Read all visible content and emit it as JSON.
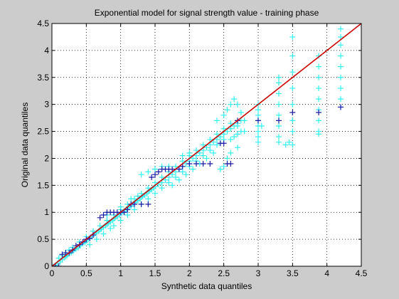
{
  "chart_data": {
    "type": "scatter",
    "title": "Exponential model for signal strength value - training phase",
    "xlabel": "Synthetic data quantiles",
    "ylabel": "Original data quantiles",
    "xlim": [
      0,
      4.5
    ],
    "ylim": [
      0,
      4.5
    ],
    "xticks": [
      0,
      0.5,
      1,
      1.5,
      2,
      2.5,
      3,
      3.5,
      4,
      4.5
    ],
    "yticks": [
      0,
      0.5,
      1,
      1.5,
      2,
      2.5,
      3,
      3.5,
      4,
      4.5
    ],
    "xtick_labels": [
      "0",
      "0.5",
      "1",
      "1.5",
      "2",
      "2.5",
      "3",
      "3.5",
      "4",
      "4.5"
    ],
    "ytick_labels": [
      "0",
      "0.5",
      "1",
      "1.5",
      "2",
      "2.5",
      "3",
      "3.5",
      "4",
      "4.5"
    ],
    "grid": true,
    "marker": "+",
    "colors": {
      "figure_bg": "#cccccc",
      "axes_bg": "#ffffff",
      "cyan": "#33f0f0",
      "blue": "#1a1aa8",
      "line": "#cc0000"
    },
    "series": [
      {
        "color": "cyan",
        "points": [
          [
            0.02,
            0.0
          ],
          [
            0.05,
            0.02
          ],
          [
            0.08,
            0.05
          ],
          [
            0.12,
            0.08
          ],
          [
            0.15,
            0.12
          ],
          [
            0.18,
            0.16
          ],
          [
            0.2,
            0.18
          ],
          [
            0.22,
            0.2
          ],
          [
            0.25,
            0.23
          ],
          [
            0.28,
            0.25
          ],
          [
            0.3,
            0.28
          ],
          [
            0.32,
            0.3
          ],
          [
            0.35,
            0.32
          ],
          [
            0.38,
            0.34
          ],
          [
            0.4,
            0.38
          ],
          [
            0.42,
            0.4
          ],
          [
            0.45,
            0.42
          ],
          [
            0.48,
            0.44
          ],
          [
            0.5,
            0.47
          ],
          [
            0.52,
            0.5
          ],
          [
            0.55,
            0.52
          ],
          [
            0.58,
            0.55
          ],
          [
            0.6,
            0.58
          ],
          [
            0.62,
            0.6
          ],
          [
            0.65,
            0.62
          ],
          [
            0.68,
            0.65
          ],
          [
            0.7,
            0.68
          ],
          [
            0.72,
            0.7
          ],
          [
            0.75,
            0.72
          ],
          [
            0.78,
            0.75
          ],
          [
            0.8,
            0.78
          ],
          [
            0.82,
            0.8
          ],
          [
            0.85,
            0.82
          ],
          [
            0.88,
            0.85
          ],
          [
            0.9,
            0.88
          ],
          [
            0.92,
            0.9
          ],
          [
            0.95,
            0.92
          ],
          [
            0.98,
            0.95
          ],
          [
            1.0,
            0.98
          ],
          [
            1.02,
            1.0
          ],
          [
            1.05,
            1.02
          ],
          [
            1.08,
            1.05
          ],
          [
            1.1,
            1.08
          ],
          [
            1.12,
            1.1
          ],
          [
            1.15,
            1.12
          ],
          [
            1.18,
            1.15
          ],
          [
            1.2,
            1.18
          ],
          [
            1.22,
            1.2
          ],
          [
            1.25,
            1.22
          ],
          [
            1.28,
            1.25
          ],
          [
            1.3,
            1.28
          ],
          [
            1.32,
            1.3
          ],
          [
            1.35,
            1.32
          ],
          [
            1.38,
            1.35
          ],
          [
            1.4,
            1.38
          ],
          [
            1.42,
            1.4
          ],
          [
            1.45,
            1.42
          ],
          [
            1.48,
            1.45
          ],
          [
            1.5,
            1.48
          ],
          [
            1.55,
            1.52
          ],
          [
            1.6,
            1.55
          ],
          [
            1.65,
            1.6
          ],
          [
            1.7,
            1.65
          ],
          [
            1.75,
            1.7
          ],
          [
            1.8,
            1.75
          ],
          [
            1.85,
            1.8
          ],
          [
            1.9,
            1.85
          ],
          [
            1.95,
            1.9
          ],
          [
            2.0,
            1.95
          ],
          [
            2.05,
            2.0
          ],
          [
            2.1,
            2.05
          ],
          [
            2.15,
            2.1
          ],
          [
            2.2,
            2.15
          ],
          [
            2.25,
            2.2
          ],
          [
            2.3,
            2.25
          ],
          [
            2.35,
            2.3
          ],
          [
            2.4,
            2.35
          ],
          [
            2.45,
            2.4
          ],
          [
            2.5,
            2.45
          ],
          [
            2.55,
            2.5
          ],
          [
            2.6,
            2.55
          ],
          [
            2.65,
            2.6
          ],
          [
            2.7,
            2.65
          ],
          [
            0.1,
            0.15
          ],
          [
            0.15,
            0.2
          ],
          [
            0.2,
            0.25
          ],
          [
            0.25,
            0.3
          ],
          [
            0.3,
            0.35
          ],
          [
            0.4,
            0.45
          ],
          [
            0.5,
            0.55
          ],
          [
            0.6,
            0.65
          ],
          [
            0.7,
            0.75
          ],
          [
            0.8,
            0.85
          ],
          [
            0.9,
            0.95
          ],
          [
            1.0,
            1.05
          ],
          [
            1.1,
            1.15
          ],
          [
            1.2,
            1.25
          ],
          [
            1.3,
            1.35
          ],
          [
            1.4,
            1.45
          ],
          [
            1.5,
            1.55
          ],
          [
            1.6,
            1.65
          ],
          [
            1.7,
            1.75
          ],
          [
            1.8,
            1.85
          ],
          [
            1.9,
            1.95
          ],
          [
            2.0,
            2.05
          ],
          [
            2.1,
            2.15
          ],
          [
            2.2,
            2.25
          ],
          [
            2.3,
            2.35
          ],
          [
            2.4,
            2.45
          ],
          [
            2.5,
            2.55
          ],
          [
            2.6,
            2.65
          ],
          [
            0.9,
            0.75
          ],
          [
            1.0,
            0.85
          ],
          [
            1.1,
            0.95
          ],
          [
            1.2,
            1.05
          ],
          [
            1.3,
            1.15
          ],
          [
            1.4,
            1.25
          ],
          [
            1.5,
            1.35
          ],
          [
            1.6,
            1.45
          ],
          [
            1.7,
            1.55
          ],
          [
            1.8,
            1.65
          ],
          [
            1.9,
            1.75
          ],
          [
            2.0,
            1.85
          ],
          [
            2.1,
            1.95
          ],
          [
            2.2,
            2.05
          ],
          [
            2.3,
            2.15
          ],
          [
            2.4,
            2.25
          ],
          [
            2.5,
            2.35
          ],
          [
            1.3,
            1.7
          ],
          [
            1.4,
            1.75
          ],
          [
            1.5,
            1.8
          ],
          [
            1.6,
            1.85
          ],
          [
            1.7,
            1.85
          ],
          [
            1.9,
            2.05
          ],
          [
            2.0,
            2.1
          ],
          [
            2.4,
            2.7
          ],
          [
            2.5,
            2.8
          ],
          [
            2.55,
            2.9
          ],
          [
            2.6,
            3.0
          ],
          [
            2.65,
            3.1
          ],
          [
            2.7,
            3.0
          ],
          [
            2.75,
            2.85
          ],
          [
            2.6,
            2.35
          ],
          [
            2.65,
            2.4
          ],
          [
            2.7,
            2.45
          ],
          [
            2.75,
            2.5
          ],
          [
            2.6,
            2.1
          ],
          [
            2.55,
            2.0
          ],
          [
            2.5,
            1.85
          ],
          [
            2.45,
            1.8
          ],
          [
            2.7,
            2.2
          ],
          [
            3.0,
            2.6
          ],
          [
            3.0,
            2.7
          ],
          [
            3.0,
            2.8
          ],
          [
            3.0,
            2.9
          ],
          [
            3.0,
            3.0
          ],
          [
            3.0,
            2.5
          ],
          [
            3.0,
            2.4
          ],
          [
            3.0,
            2.3
          ],
          [
            3.3,
            2.8
          ],
          [
            3.3,
            3.0
          ],
          [
            3.3,
            3.2
          ],
          [
            3.3,
            3.4
          ],
          [
            3.3,
            3.5
          ],
          [
            3.3,
            2.6
          ],
          [
            3.3,
            2.4
          ],
          [
            3.3,
            2.3
          ],
          [
            3.5,
            3.0
          ],
          [
            3.5,
            3.3
          ],
          [
            3.5,
            3.6
          ],
          [
            3.5,
            3.9
          ],
          [
            3.5,
            4.25
          ],
          [
            3.5,
            2.7
          ],
          [
            3.5,
            2.5
          ],
          [
            3.5,
            2.25
          ],
          [
            3.88,
            3.5
          ],
          [
            3.88,
            3.3
          ],
          [
            3.88,
            3.1
          ],
          [
            3.88,
            2.9
          ],
          [
            3.88,
            2.7
          ],
          [
            3.88,
            2.5
          ],
          [
            3.88,
            2.45
          ],
          [
            3.88,
            3.7
          ],
          [
            3.88,
            3.9
          ],
          [
            4.2,
            4.4
          ],
          [
            4.2,
            4.25
          ],
          [
            4.2,
            4.1
          ],
          [
            4.2,
            3.9
          ],
          [
            4.2,
            3.7
          ],
          [
            4.2,
            3.5
          ],
          [
            4.2,
            3.3
          ],
          [
            4.2,
            3.1
          ],
          [
            4.2,
            2.95
          ],
          [
            3.45,
            2.3
          ],
          [
            3.4,
            2.25
          ],
          [
            2.75,
            2.7
          ],
          [
            2.7,
            2.6
          ],
          [
            2.8,
            2.5
          ],
          [
            2.8,
            2.7
          ],
          [
            3.05,
            2.6
          ],
          [
            1.0,
            1.1
          ],
          [
            0.8,
            0.95
          ],
          [
            1.15,
            1.25
          ],
          [
            1.25,
            1.3
          ],
          [
            0.55,
            0.4
          ],
          [
            0.65,
            0.5
          ],
          [
            0.75,
            0.6
          ],
          [
            0.85,
            0.7
          ],
          [
            1.75,
            1.5
          ],
          [
            1.85,
            1.6
          ],
          [
            1.95,
            1.7
          ],
          [
            2.05,
            1.8
          ],
          [
            2.15,
            1.9
          ],
          [
            2.25,
            2.0
          ],
          [
            2.35,
            2.1
          ]
        ]
      },
      {
        "color": "blue",
        "points": [
          [
            0.0,
            0.0
          ],
          [
            0.05,
            0.0
          ],
          [
            0.1,
            0.0
          ],
          [
            0.15,
            0.22
          ],
          [
            0.2,
            0.25
          ],
          [
            0.25,
            0.25
          ],
          [
            0.3,
            0.3
          ],
          [
            0.35,
            0.38
          ],
          [
            0.4,
            0.4
          ],
          [
            0.45,
            0.45
          ],
          [
            0.5,
            0.5
          ],
          [
            0.55,
            0.52
          ],
          [
            0.6,
            0.58
          ],
          [
            0.7,
            0.9
          ],
          [
            0.75,
            0.95
          ],
          [
            0.8,
            1.0
          ],
          [
            0.85,
            1.0
          ],
          [
            0.9,
            1.0
          ],
          [
            0.95,
            1.0
          ],
          [
            1.0,
            1.0
          ],
          [
            1.05,
            1.0
          ],
          [
            1.1,
            1.05
          ],
          [
            1.15,
            1.15
          ],
          [
            1.2,
            1.15
          ],
          [
            1.3,
            1.15
          ],
          [
            1.4,
            1.15
          ],
          [
            1.45,
            1.65
          ],
          [
            1.5,
            1.7
          ],
          [
            1.55,
            1.75
          ],
          [
            1.6,
            1.8
          ],
          [
            1.65,
            1.8
          ],
          [
            1.7,
            1.8
          ],
          [
            1.75,
            1.8
          ],
          [
            1.85,
            1.8
          ],
          [
            1.9,
            1.85
          ],
          [
            2.0,
            1.9
          ],
          [
            2.1,
            1.9
          ],
          [
            2.2,
            1.9
          ],
          [
            2.3,
            1.9
          ],
          [
            2.45,
            2.28
          ],
          [
            2.5,
            2.28
          ],
          [
            2.55,
            1.9
          ],
          [
            2.6,
            1.9
          ],
          [
            2.7,
            2.7
          ],
          [
            3.0,
            2.7
          ],
          [
            3.3,
            2.7
          ],
          [
            3.5,
            2.85
          ],
          [
            3.88,
            2.85
          ],
          [
            4.2,
            2.95
          ]
        ]
      }
    ],
    "reference_line": {
      "from": [
        0,
        0
      ],
      "to": [
        4.5,
        4.5
      ]
    }
  }
}
